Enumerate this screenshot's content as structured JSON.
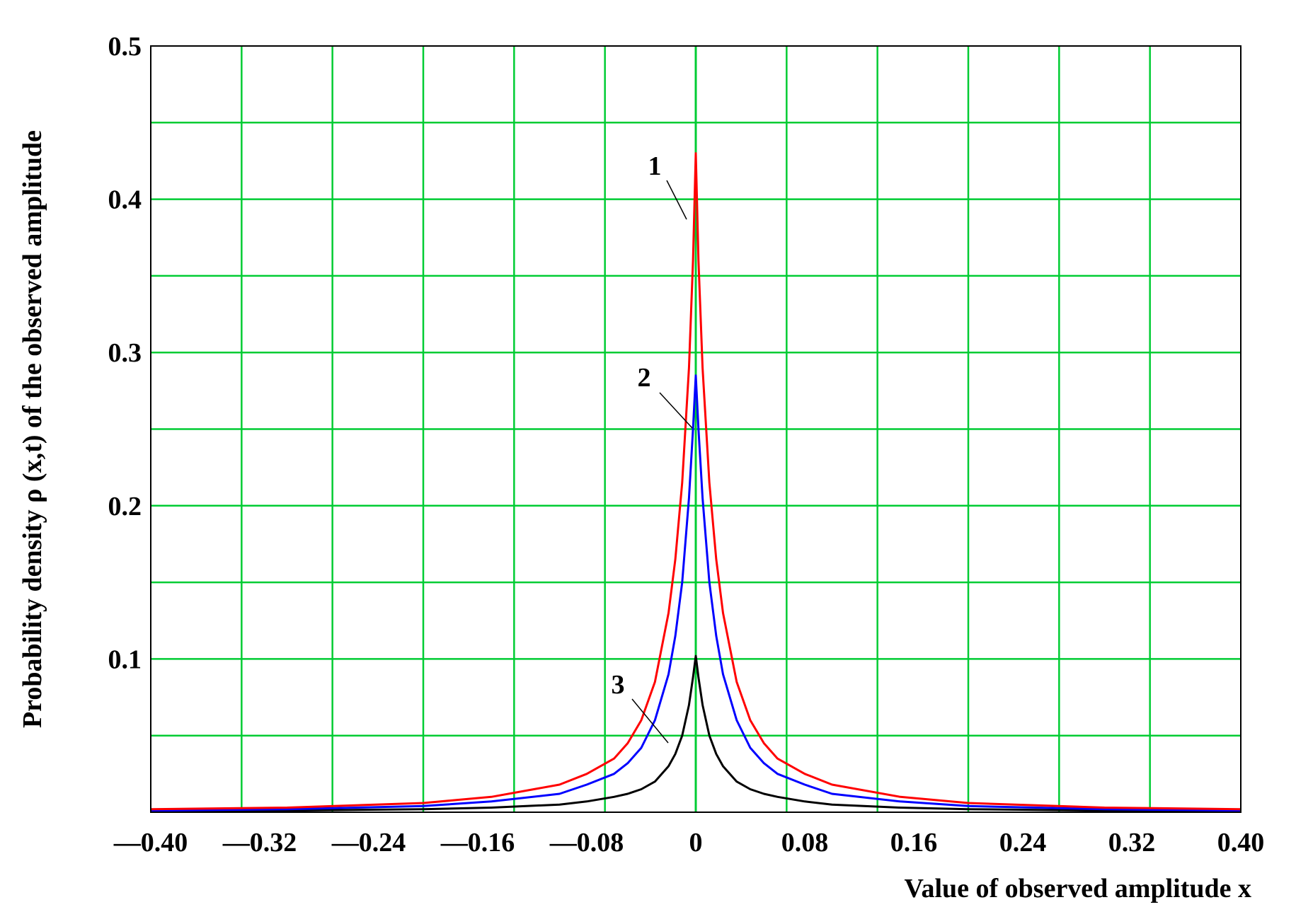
{
  "chart_data": {
    "type": "line",
    "xlabel": "Value of observed amplitude x",
    "ylabel": "Probability density ρ (x,t) of the observed amplitude",
    "xlim": [
      -0.4,
      0.4
    ],
    "ylim": [
      0,
      0.5
    ],
    "x_ticks": [
      -0.4,
      -0.32,
      -0.24,
      -0.16,
      -0.08,
      0,
      0.08,
      0.16,
      0.24,
      0.32,
      0.4
    ],
    "x_tick_labels": [
      "—0.40",
      "—0.32",
      "—0.24",
      "—0.16",
      "—0.08",
      "0",
      "0.08",
      "0.16",
      "0.24",
      "0.32",
      "0.40"
    ],
    "y_ticks": [
      0.1,
      0.2,
      0.3,
      0.4,
      0.5
    ],
    "y_tick_labels": [
      "0.1",
      "0.2",
      "0.3",
      "0.4",
      "0.5"
    ],
    "grid": true,
    "grid_color": "#00cc33",
    "series": [
      {
        "name": "1",
        "color": "#ff0000",
        "x": [
          -0.4,
          -0.3,
          -0.2,
          -0.15,
          -0.1,
          -0.08,
          -0.06,
          -0.05,
          -0.04,
          -0.03,
          -0.02,
          -0.015,
          -0.01,
          -0.005,
          -0.002,
          0,
          0.002,
          0.005,
          0.01,
          0.015,
          0.02,
          0.03,
          0.04,
          0.05,
          0.06,
          0.08,
          0.1,
          0.15,
          0.2,
          0.3,
          0.4
        ],
        "y": [
          0.002,
          0.003,
          0.006,
          0.01,
          0.018,
          0.025,
          0.035,
          0.045,
          0.06,
          0.085,
          0.13,
          0.165,
          0.215,
          0.29,
          0.36,
          0.43,
          0.36,
          0.29,
          0.215,
          0.165,
          0.13,
          0.085,
          0.06,
          0.045,
          0.035,
          0.025,
          0.018,
          0.01,
          0.006,
          0.003,
          0.002
        ]
      },
      {
        "name": "2",
        "color": "#0000ff",
        "x": [
          -0.4,
          -0.3,
          -0.2,
          -0.15,
          -0.1,
          -0.08,
          -0.06,
          -0.05,
          -0.04,
          -0.03,
          -0.02,
          -0.015,
          -0.01,
          -0.005,
          -0.002,
          0,
          0.002,
          0.005,
          0.01,
          0.015,
          0.02,
          0.03,
          0.04,
          0.05,
          0.06,
          0.08,
          0.1,
          0.15,
          0.2,
          0.3,
          0.4
        ],
        "y": [
          0.001,
          0.002,
          0.004,
          0.007,
          0.012,
          0.018,
          0.025,
          0.032,
          0.042,
          0.06,
          0.09,
          0.115,
          0.15,
          0.205,
          0.25,
          0.285,
          0.25,
          0.205,
          0.15,
          0.115,
          0.09,
          0.06,
          0.042,
          0.032,
          0.025,
          0.018,
          0.012,
          0.007,
          0.004,
          0.002,
          0.001
        ]
      },
      {
        "name": "3",
        "color": "#000000",
        "x": [
          -0.4,
          -0.3,
          -0.2,
          -0.15,
          -0.1,
          -0.08,
          -0.06,
          -0.05,
          -0.04,
          -0.03,
          -0.02,
          -0.015,
          -0.01,
          -0.005,
          -0.002,
          0,
          0.002,
          0.005,
          0.01,
          0.015,
          0.02,
          0.03,
          0.04,
          0.05,
          0.06,
          0.08,
          0.1,
          0.15,
          0.2,
          0.3,
          0.4
        ],
        "y": [
          0.0005,
          0.001,
          0.002,
          0.003,
          0.005,
          0.007,
          0.01,
          0.012,
          0.015,
          0.02,
          0.03,
          0.038,
          0.05,
          0.07,
          0.088,
          0.102,
          0.088,
          0.07,
          0.05,
          0.038,
          0.03,
          0.02,
          0.015,
          0.012,
          0.01,
          0.007,
          0.005,
          0.003,
          0.002,
          0.001,
          0.0005
        ]
      }
    ]
  }
}
